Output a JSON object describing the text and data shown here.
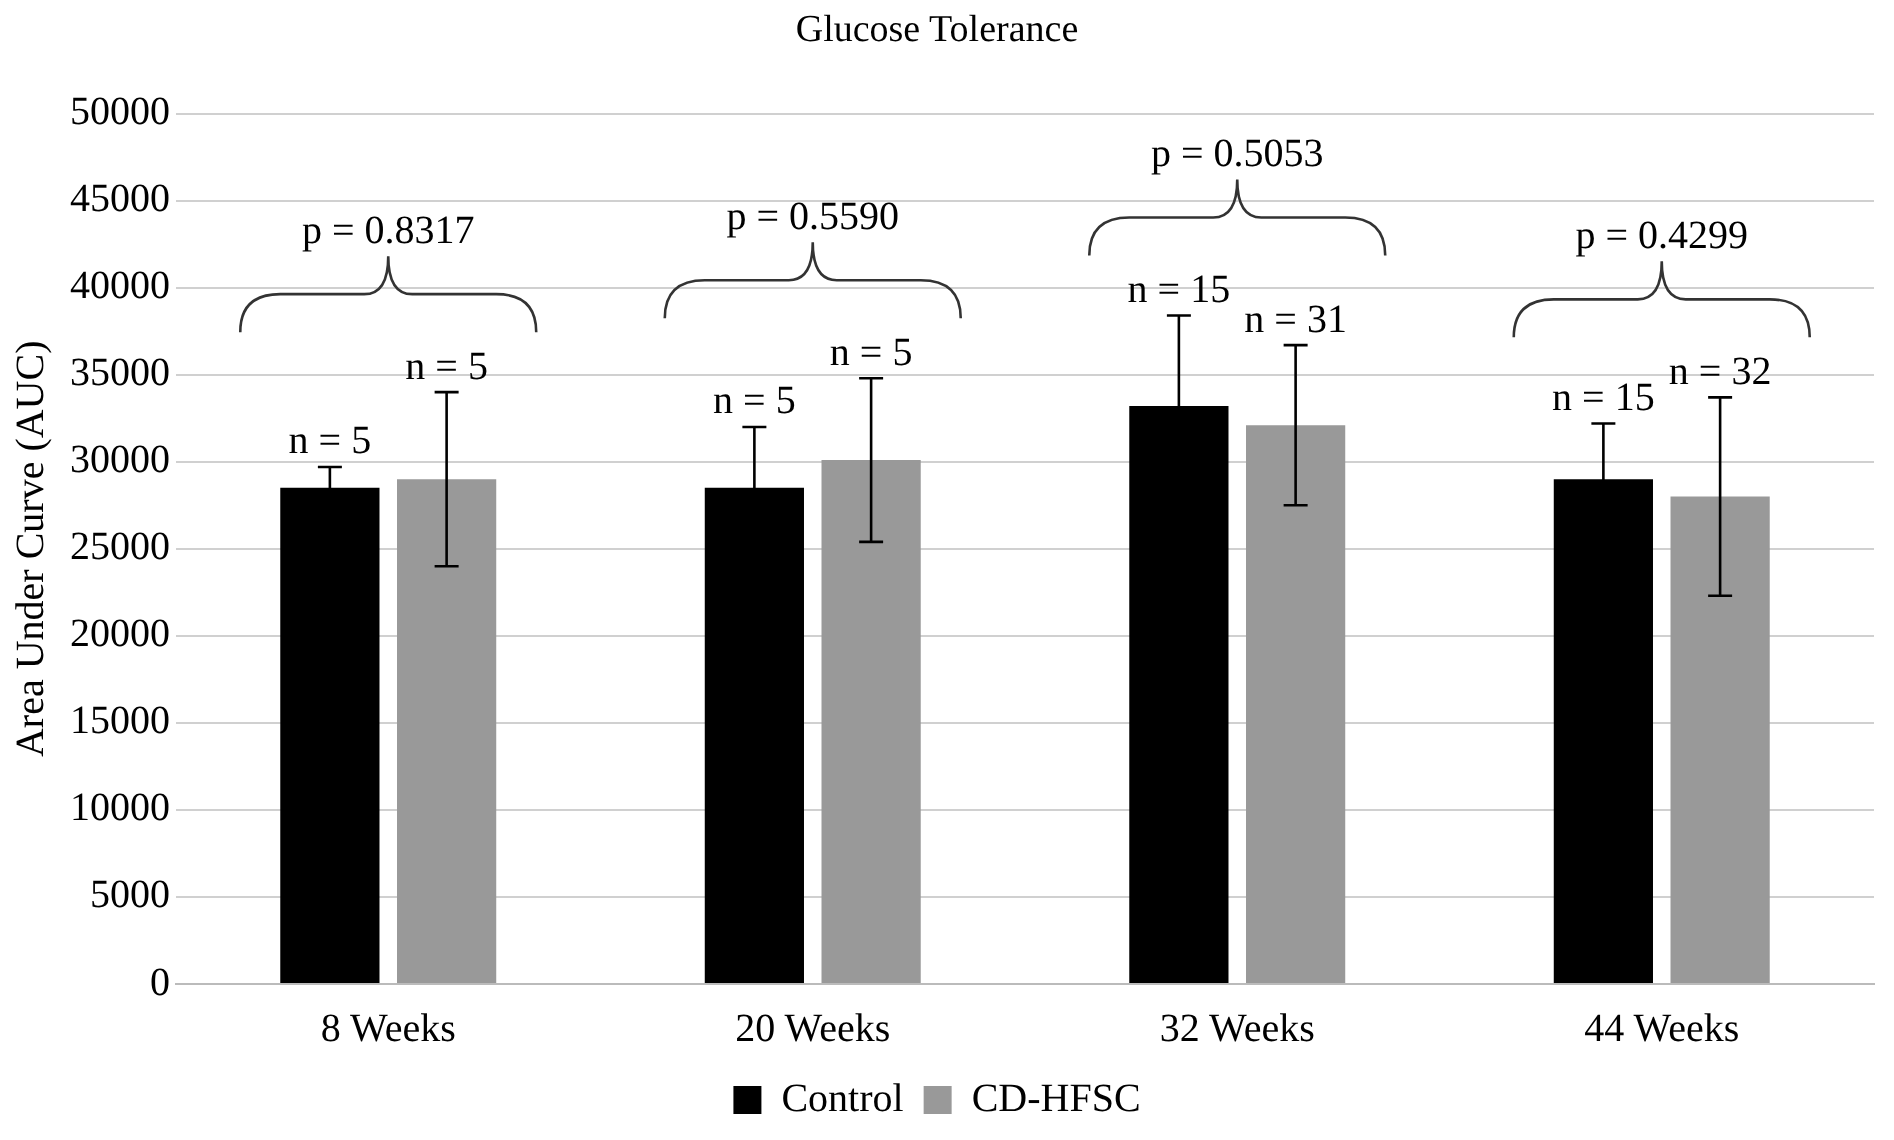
{
  "chart_data": {
    "type": "bar",
    "title": "Glucose Tolerance",
    "ylabel": "Area Under Curve (AUC)",
    "categories": [
      "8 Weeks",
      "20 Weeks",
      "32 Weeks",
      "44 Weeks"
    ],
    "series": [
      {
        "name": "Control",
        "color": "#000000",
        "values": [
          28500,
          28500,
          33200,
          29000
        ],
        "errors": [
          1200,
          3500,
          5200,
          3200
        ]
      },
      {
        "name": "CD-HFSC",
        "color": "#999999",
        "values": [
          29000,
          30100,
          32100,
          28000
        ],
        "errors": [
          5000,
          4700,
          4600,
          5700
        ]
      }
    ],
    "annotations": [
      "n = 5",
      "n = 5",
      "n = 5",
      "n = 5",
      "n = 15",
      "n = 31",
      "n = 15",
      "n = 32",
      "p = 0.8317",
      "p = 0.5590",
      "p = 0.5053",
      "p = 0.4299"
    ],
    "ylim": [
      0,
      50000
    ],
    "yticks": [
      0,
      5000,
      10000,
      15000,
      20000,
      25000,
      30000,
      35000,
      40000,
      45000,
      50000
    ],
    "grid": "y",
    "legend": "bottom"
  }
}
